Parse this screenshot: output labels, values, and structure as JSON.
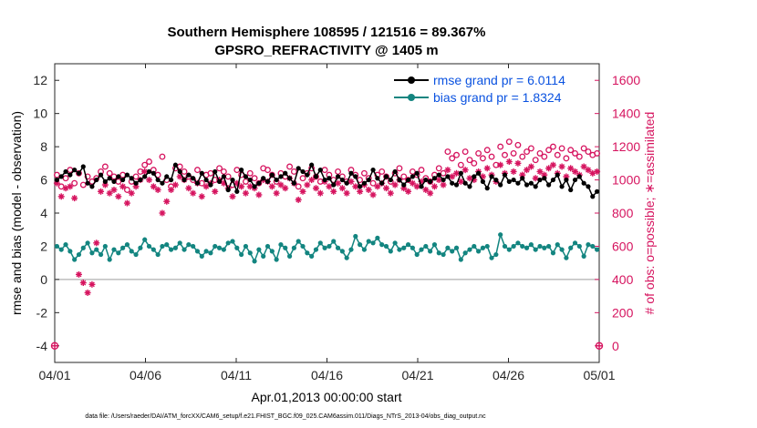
{
  "chart_data": {
    "type": "line",
    "title": [
      "Southern Hemisphere 108595 / 121516 = 89.367%",
      "GPSRO_REFRACTIVITY @ 1405 m"
    ],
    "xlabel": "Apr.01,2013 00:00:00 start",
    "ylabel_left": "rmse and bias (model - observation)",
    "ylabel_right": "# of obs: o=possible; ∗=assimilated",
    "footnote": "data file: /Users/raeder/DAI/ATM_forcXX/CAM6_setup/f.e21.FHIST_BGC.f09_025.CAM6assim.011/Diags_NTrS_2013-04/obs_diag_output.nc",
    "xlim": [
      0,
      30
    ],
    "x_ticks": [
      0,
      5,
      10,
      15,
      20,
      25,
      30
    ],
    "x_tick_labels": [
      "04/01",
      "04/06",
      "04/11",
      "04/16",
      "04/21",
      "04/26",
      "05/01"
    ],
    "ylim_left": [
      -5,
      13
    ],
    "y_ticks_left": [
      -4,
      -2,
      0,
      2,
      4,
      6,
      8,
      10,
      12
    ],
    "ylim_right": [
      -100,
      1700
    ],
    "y_ticks_right": [
      0,
      200,
      400,
      600,
      800,
      1000,
      1200,
      1400,
      1600
    ],
    "legend_position": "top-right",
    "colors": {
      "rmse": "#000000",
      "bias": "#138580",
      "obs": "#d6145f",
      "zero_line": "#b0b0b0",
      "legend_text": "#0a52e0"
    },
    "series": [
      {
        "name": "rmse grand pr = 6.0114",
        "axis": "left",
        "values": [
          6.0,
          6.2,
          6.5,
          6.3,
          6.6,
          6.4,
          6.8,
          5.8,
          5.6,
          6.0,
          6.3,
          5.9,
          6.1,
          5.9,
          6.2,
          6.0,
          6.3,
          6.1,
          5.8,
          6.0,
          6.2,
          6.5,
          6.4,
          6.0,
          5.8,
          6.2,
          6.0,
          6.9,
          6.5,
          6.0,
          6.3,
          6.1,
          5.8,
          6.4,
          6.0,
          5.7,
          6.5,
          5.9,
          6.2,
          5.4,
          6.0,
          5.3,
          6.6,
          6.2,
          6.0,
          5.6,
          5.8,
          6.1,
          5.9,
          6.3,
          6.0,
          6.2,
          6.4,
          6.1,
          5.8,
          6.7,
          6.5,
          6.3,
          6.9,
          6.2,
          6.6,
          6.0,
          6.1,
          5.7,
          6.2,
          6.0,
          5.8,
          6.4,
          6.2,
          5.6,
          5.8,
          6.0,
          6.6,
          6.1,
          5.8,
          6.2,
          6.0,
          6.5,
          6.0,
          5.7,
          6.0,
          6.2,
          6.4,
          5.6,
          6.0,
          5.9,
          6.1,
          6.3,
          6.0,
          6.2,
          5.8,
          5.7,
          6.4,
          5.8,
          5.6,
          6.2,
          6.4,
          5.9,
          5.5,
          6.2,
          6.0,
          5.7,
          6.3,
          5.9,
          6.0,
          5.8,
          6.1,
          5.7,
          5.8,
          5.6,
          6.0,
          6.1,
          5.7,
          6.0,
          6.3,
          5.6,
          6.0,
          5.4,
          6.0,
          6.2,
          5.8,
          5.6,
          5.0,
          5.3
        ]
      },
      {
        "name": "bias grand pr = 1.8324",
        "axis": "left",
        "values": [
          2.0,
          1.8,
          2.1,
          1.7,
          1.2,
          1.5,
          1.9,
          2.2,
          1.6,
          1.8,
          1.5,
          2.0,
          1.2,
          1.8,
          1.6,
          1.9,
          2.1,
          1.7,
          1.5,
          1.9,
          2.4,
          2.0,
          1.8,
          1.5,
          2.0,
          2.1,
          1.8,
          1.9,
          2.2,
          1.8,
          2.1,
          2.0,
          1.7,
          1.4,
          1.7,
          1.6,
          2.0,
          1.9,
          1.8,
          2.2,
          2.3,
          1.9,
          1.5,
          2.0,
          1.6,
          1.1,
          1.8,
          1.4,
          2.0,
          1.7,
          1.2,
          2.1,
          1.9,
          1.4,
          1.9,
          2.3,
          2.0,
          1.6,
          1.4,
          1.8,
          2.2,
          1.9,
          2.0,
          2.3,
          1.9,
          1.7,
          1.3,
          1.8,
          2.6,
          2.1,
          1.8,
          2.3,
          2.2,
          2.5,
          2.1,
          2.0,
          1.7,
          2.2,
          1.8,
          1.9,
          2.1,
          1.9,
          1.5,
          1.8,
          2.0,
          1.7,
          2.1,
          1.6,
          1.5,
          1.9,
          1.7,
          1.9,
          1.2,
          1.6,
          1.8,
          2.0,
          1.7,
          1.9,
          2.0,
          1.3,
          1.5,
          2.7,
          2.0,
          1.8,
          2.0,
          2.2,
          2.0,
          1.9,
          2.1,
          1.8,
          2.0,
          1.9,
          2.0,
          1.6,
          2.1,
          1.8,
          1.3,
          1.9,
          2.2,
          2.0,
          1.4,
          2.1,
          2.0,
          1.8
        ]
      }
    ],
    "possible_obs": [
      1030,
      960,
      1010,
      1060,
      980,
      1040,
      970,
      1020,
      990,
      1010,
      1050,
      1080,
      1040,
      1020,
      990,
      1030,
      940,
      990,
      1020,
      1050,
      1090,
      1110,
      1060,
      1030,
      1140,
      1000,
      960,
      1070,
      1080,
      1050,
      1020,
      1000,
      1060,
      980,
      1030,
      1040,
      1000,
      1070,
      1050,
      1020,
      970,
      1060,
      1030,
      990,
      1040,
      1010,
      980,
      1070,
      1060,
      1030,
      990,
      1040,
      1020,
      1080,
      1050,
      960,
      1010,
      1040,
      1070,
      1020,
      990,
      1060,
      1030,
      1000,
      1050,
      1020,
      990,
      1060,
      1030,
      1000,
      1040,
      1010,
      980,
      1030,
      1050,
      1020,
      990,
      1040,
      1070,
      1020,
      1000,
      1050,
      1030,
      1060,
      1010,
      990,
      1030,
      1070,
      1040,
      1170,
      1130,
      1150,
      1090,
      1170,
      1120,
      1100,
      1160,
      1130,
      1180,
      1140,
      1090,
      1200,
      1150,
      1230,
      1160,
      1210,
      1140,
      1170,
      1190,
      1120,
      1160,
      1140,
      1180,
      1200,
      1150,
      1190,
      1130,
      1180,
      1160,
      1140,
      1190,
      1170,
      1150,
      1160
    ],
    "assimilated_obs": [
      980,
      900,
      950,
      960,
      890,
      430,
      380,
      320,
      370,
      620,
      930,
      970,
      920,
      940,
      900,
      960,
      860,
      920,
      960,
      1000,
      1050,
      1000,
      960,
      940,
      800,
      870,
      940,
      970,
      1020,
      1000,
      950,
      920,
      980,
      900,
      960,
      980,
      930,
      1000,
      980,
      950,
      900,
      980,
      960,
      920,
      960,
      950,
      910,
      1000,
      990,
      960,
      920,
      970,
      950,
      1010,
      980,
      880,
      930,
      970,
      1000,
      950,
      920,
      990,
      960,
      930,
      980,
      950,
      920,
      990,
      960,
      930,
      970,
      940,
      910,
      960,
      980,
      950,
      920,
      970,
      1000,
      950,
      930,
      980,
      960,
      990,
      940,
      920,
      960,
      1000,
      970,
      1060,
      1020,
      1040,
      990,
      1060,
      1010,
      1000,
      1050,
      1020,
      1070,
      1030,
      990,
      1090,
      1040,
      1110,
      1050,
      1100,
      1030,
      1060,
      1080,
      1010,
      1050,
      1030,
      1070,
      1090,
      1040,
      1080,
      1020,
      1070,
      1050,
      1030,
      1080,
      1060,
      1040,
      1050
    ],
    "endpoint_markers": [
      {
        "x": 0.0,
        "y_left": -4
      },
      {
        "x": 30.0,
        "y_left": -4
      }
    ]
  }
}
